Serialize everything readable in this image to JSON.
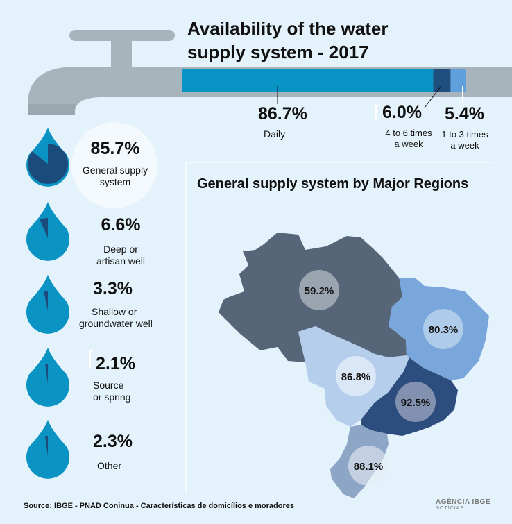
{
  "title_line1": "Availability of the water",
  "title_line2": "supply system - 2017",
  "colors": {
    "background": "#e4f3fb",
    "pipe": "#a8b4bb",
    "daily": "#0895c5",
    "four_to_six": "#1f4f7f",
    "one_to_three": "#5fa0dd",
    "drop": "#0a93c3",
    "drop_dark": "#1b4b7a",
    "north": "#566678",
    "northeast": "#79a7dc",
    "centerwest": "#b4ceec",
    "southeast": "#2d4d7f",
    "south": "#8ea6c6"
  },
  "chart_data": [
    {
      "type": "bar",
      "title": "Availability of the water supply system - 2017",
      "categories": [
        "Daily",
        "4 to 6 times a week",
        "1 to 3 times a week"
      ],
      "values": [
        86.7,
        6.0,
        5.4
      ],
      "labels": [
        "86.7%",
        "6.0%",
        "5.4%"
      ]
    },
    {
      "type": "pie",
      "categories": [
        "General supply system",
        "Deep or artisan well",
        "Shallow or groundwater well",
        "Source or spring",
        "Other"
      ],
      "values": [
        85.7,
        6.6,
        3.3,
        2.1,
        2.3
      ],
      "labels": [
        "85.7%",
        "6.6%",
        "3.3%",
        "2.1%",
        "2.3%"
      ]
    },
    {
      "type": "map",
      "title": "General supply system by Major Regions",
      "values": [
        59.2,
        80.3,
        86.8,
        92.5,
        88.1
      ],
      "labels": [
        "59.2%",
        "80.3%",
        "86.8%",
        "92.5%",
        "88.1%"
      ]
    }
  ],
  "bar": {
    "daily": {
      "pct": "86.7%",
      "label": "Daily"
    },
    "four_six": {
      "pct": "6.0%",
      "label1": "4 to 6 times",
      "label2": "a week"
    },
    "one_three": {
      "pct": "5.4%",
      "label1": "1 to 3 times",
      "label2": "a week"
    }
  },
  "sources": [
    {
      "pct": "85.7%",
      "label1": "General supply",
      "label2": "system",
      "value": 85.7
    },
    {
      "pct": "6.6%",
      "label1": "Deep or",
      "label2": "artisan well",
      "value": 6.6
    },
    {
      "pct": "3.3%",
      "label1": "Shallow or",
      "label2": "groundwater well",
      "value": 3.3
    },
    {
      "pct": "2.1%",
      "label1": "Source",
      "label2": "or spring",
      "value": 2.1
    },
    {
      "pct": "2.3%",
      "label1": "Other",
      "label2": "",
      "value": 2.3
    }
  ],
  "regions_title": "General supply system by Major Regions",
  "regions": [
    {
      "pct": "59.2%"
    },
    {
      "pct": "80.3%"
    },
    {
      "pct": "86.8%"
    },
    {
      "pct": "92.5%"
    },
    {
      "pct": "88.1%"
    }
  ],
  "source_note": "Source: IBGE - PNAD Coninua - Características de domicílios e moradores",
  "logo": {
    "main": "AGÊNCIA IBGE",
    "sub": "NOTÍCIAS"
  }
}
